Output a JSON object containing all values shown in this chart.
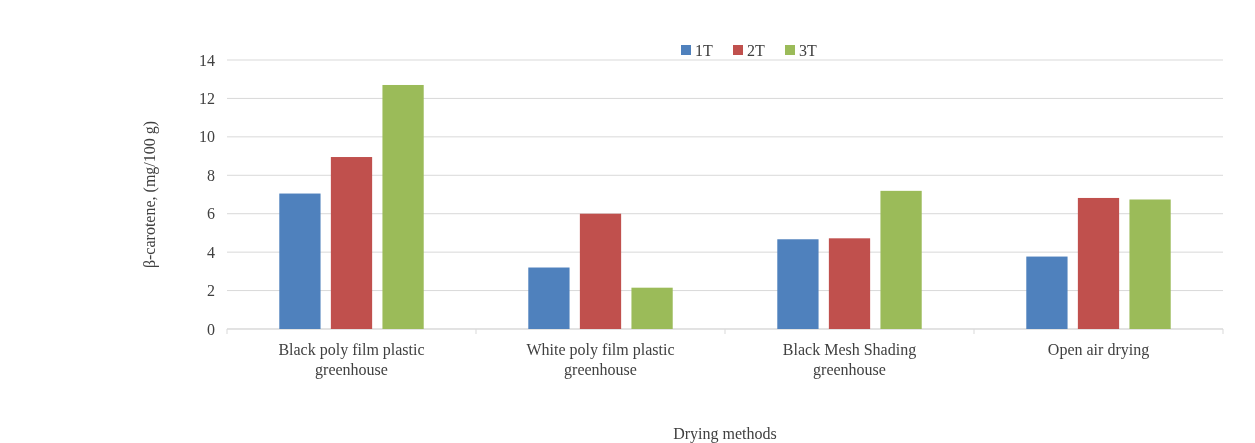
{
  "chart_data": {
    "type": "bar",
    "xlabel": "Drying methods",
    "ylabel": "β-carotene, (mg/100 g)",
    "categories": [
      "Black poly film plastic greenhouse",
      "White poly film plastic greenhouse",
      "Black Mesh Shading greenhouse",
      "Open air drying"
    ],
    "series": [
      {
        "name": "1T",
        "color": "#4f81bd",
        "values": [
          7.05,
          3.2,
          4.67,
          3.77
        ]
      },
      {
        "name": "2T",
        "color": "#c0504d",
        "values": [
          8.95,
          6.0,
          4.72,
          6.82
        ]
      },
      {
        "name": "3T",
        "color": "#9bbb59",
        "values": [
          12.7,
          2.15,
          7.19,
          6.74
        ]
      }
    ],
    "ylim": [
      0,
      14
    ],
    "yticks": [
      0,
      2,
      4,
      6,
      8,
      10,
      12,
      14
    ],
    "grid": "y",
    "legend": "top"
  }
}
